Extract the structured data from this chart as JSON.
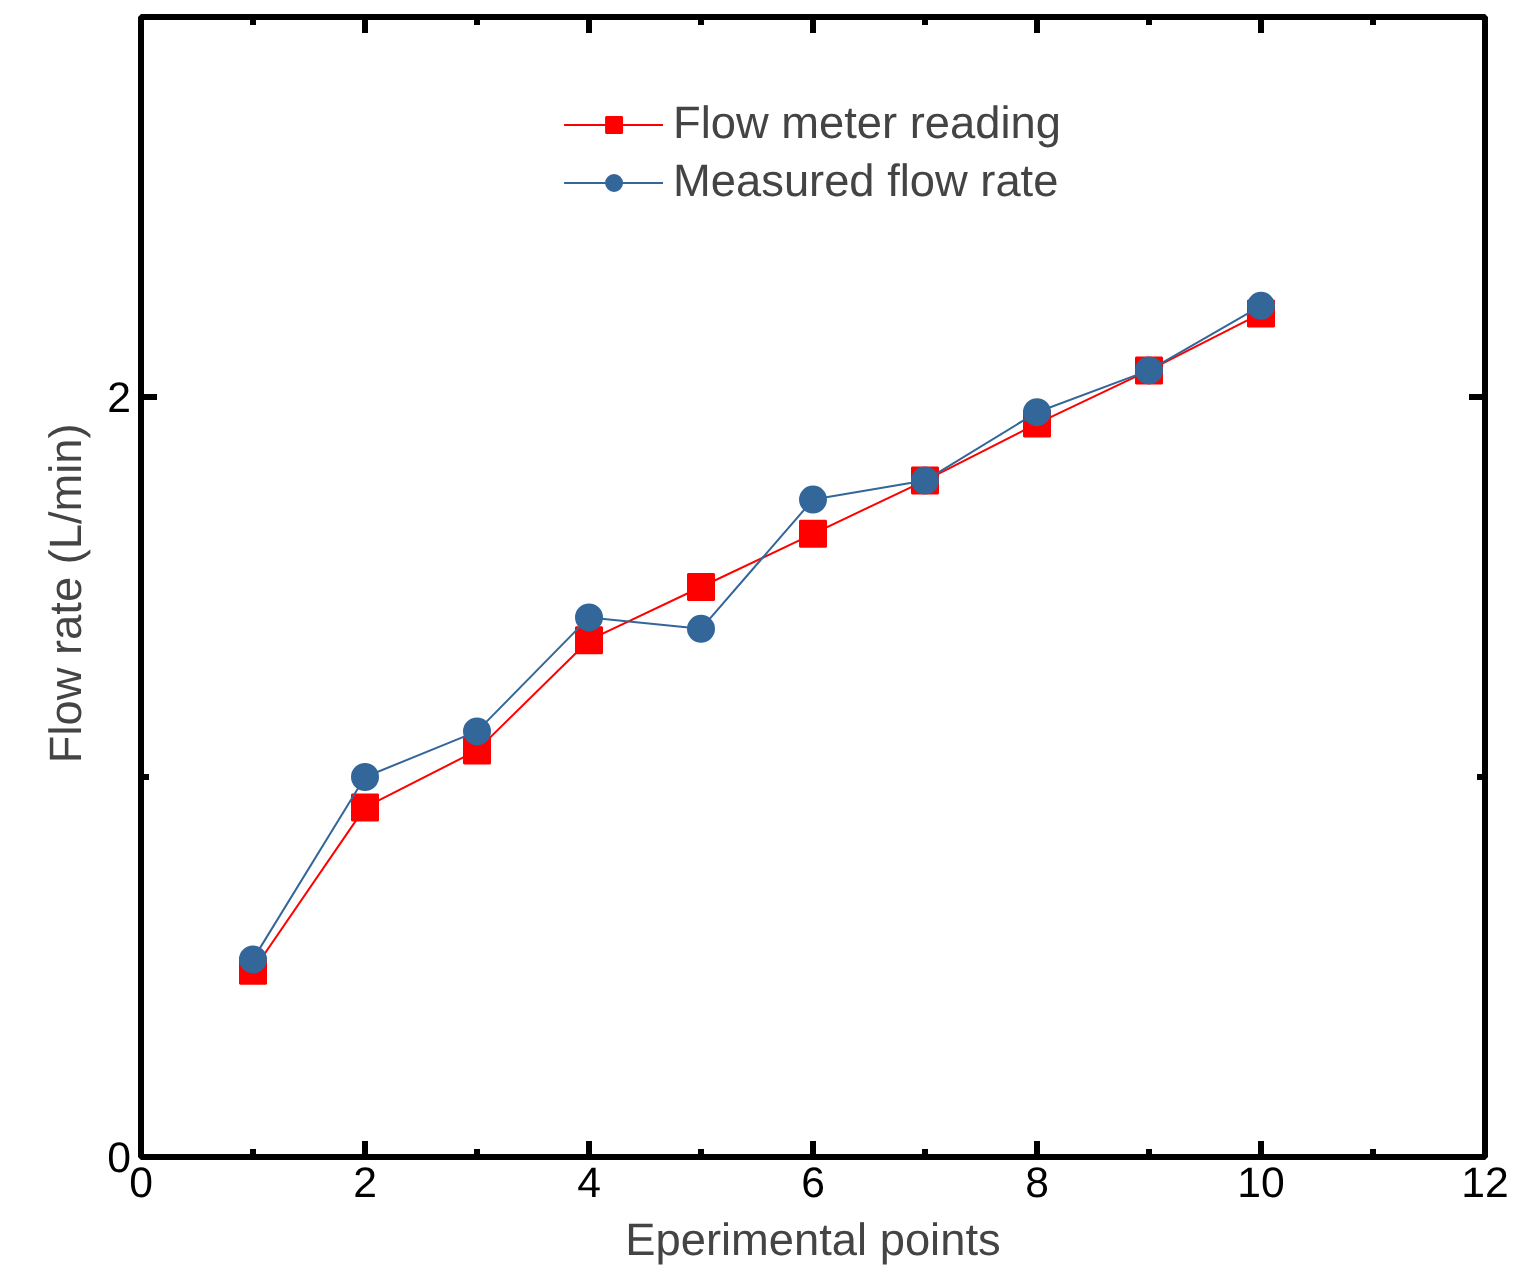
{
  "chart_data": {
    "type": "line",
    "xlabel": "Eperimental points",
    "ylabel": "Flow  rate (L/min)",
    "x": [
      1,
      2,
      3,
      4,
      5,
      6,
      7,
      8,
      9,
      10
    ],
    "xlim": [
      0,
      12
    ],
    "ylim": [
      0,
      3
    ],
    "xticks": [
      0,
      {
        "value": 1,
        "label": null
      },
      2,
      {
        "value": 3,
        "label": null
      },
      4,
      {
        "value": 5,
        "label": null
      },
      6,
      {
        "value": 7,
        "label": null
      },
      8,
      {
        "value": 9,
        "label": null
      },
      10,
      {
        "value": 11,
        "label": null
      },
      12
    ],
    "yticks": [
      0,
      {
        "value": 1,
        "label": null
      },
      2
    ],
    "grid": false,
    "legend": "top",
    "line_style": "solid",
    "series": [
      {
        "name": "Flow meter reading",
        "color": "#ff0000",
        "marker": "square",
        "values": [
          0.49,
          0.92,
          1.07,
          1.36,
          1.5,
          1.64,
          1.78,
          1.93,
          2.07,
          2.22
        ]
      },
      {
        "name": "Measured flow rate",
        "color": "#336699",
        "marker": "circle",
        "values": [
          0.52,
          1.0,
          1.12,
          1.42,
          1.39,
          1.73,
          1.78,
          1.96,
          2.07,
          2.24
        ]
      }
    ]
  }
}
